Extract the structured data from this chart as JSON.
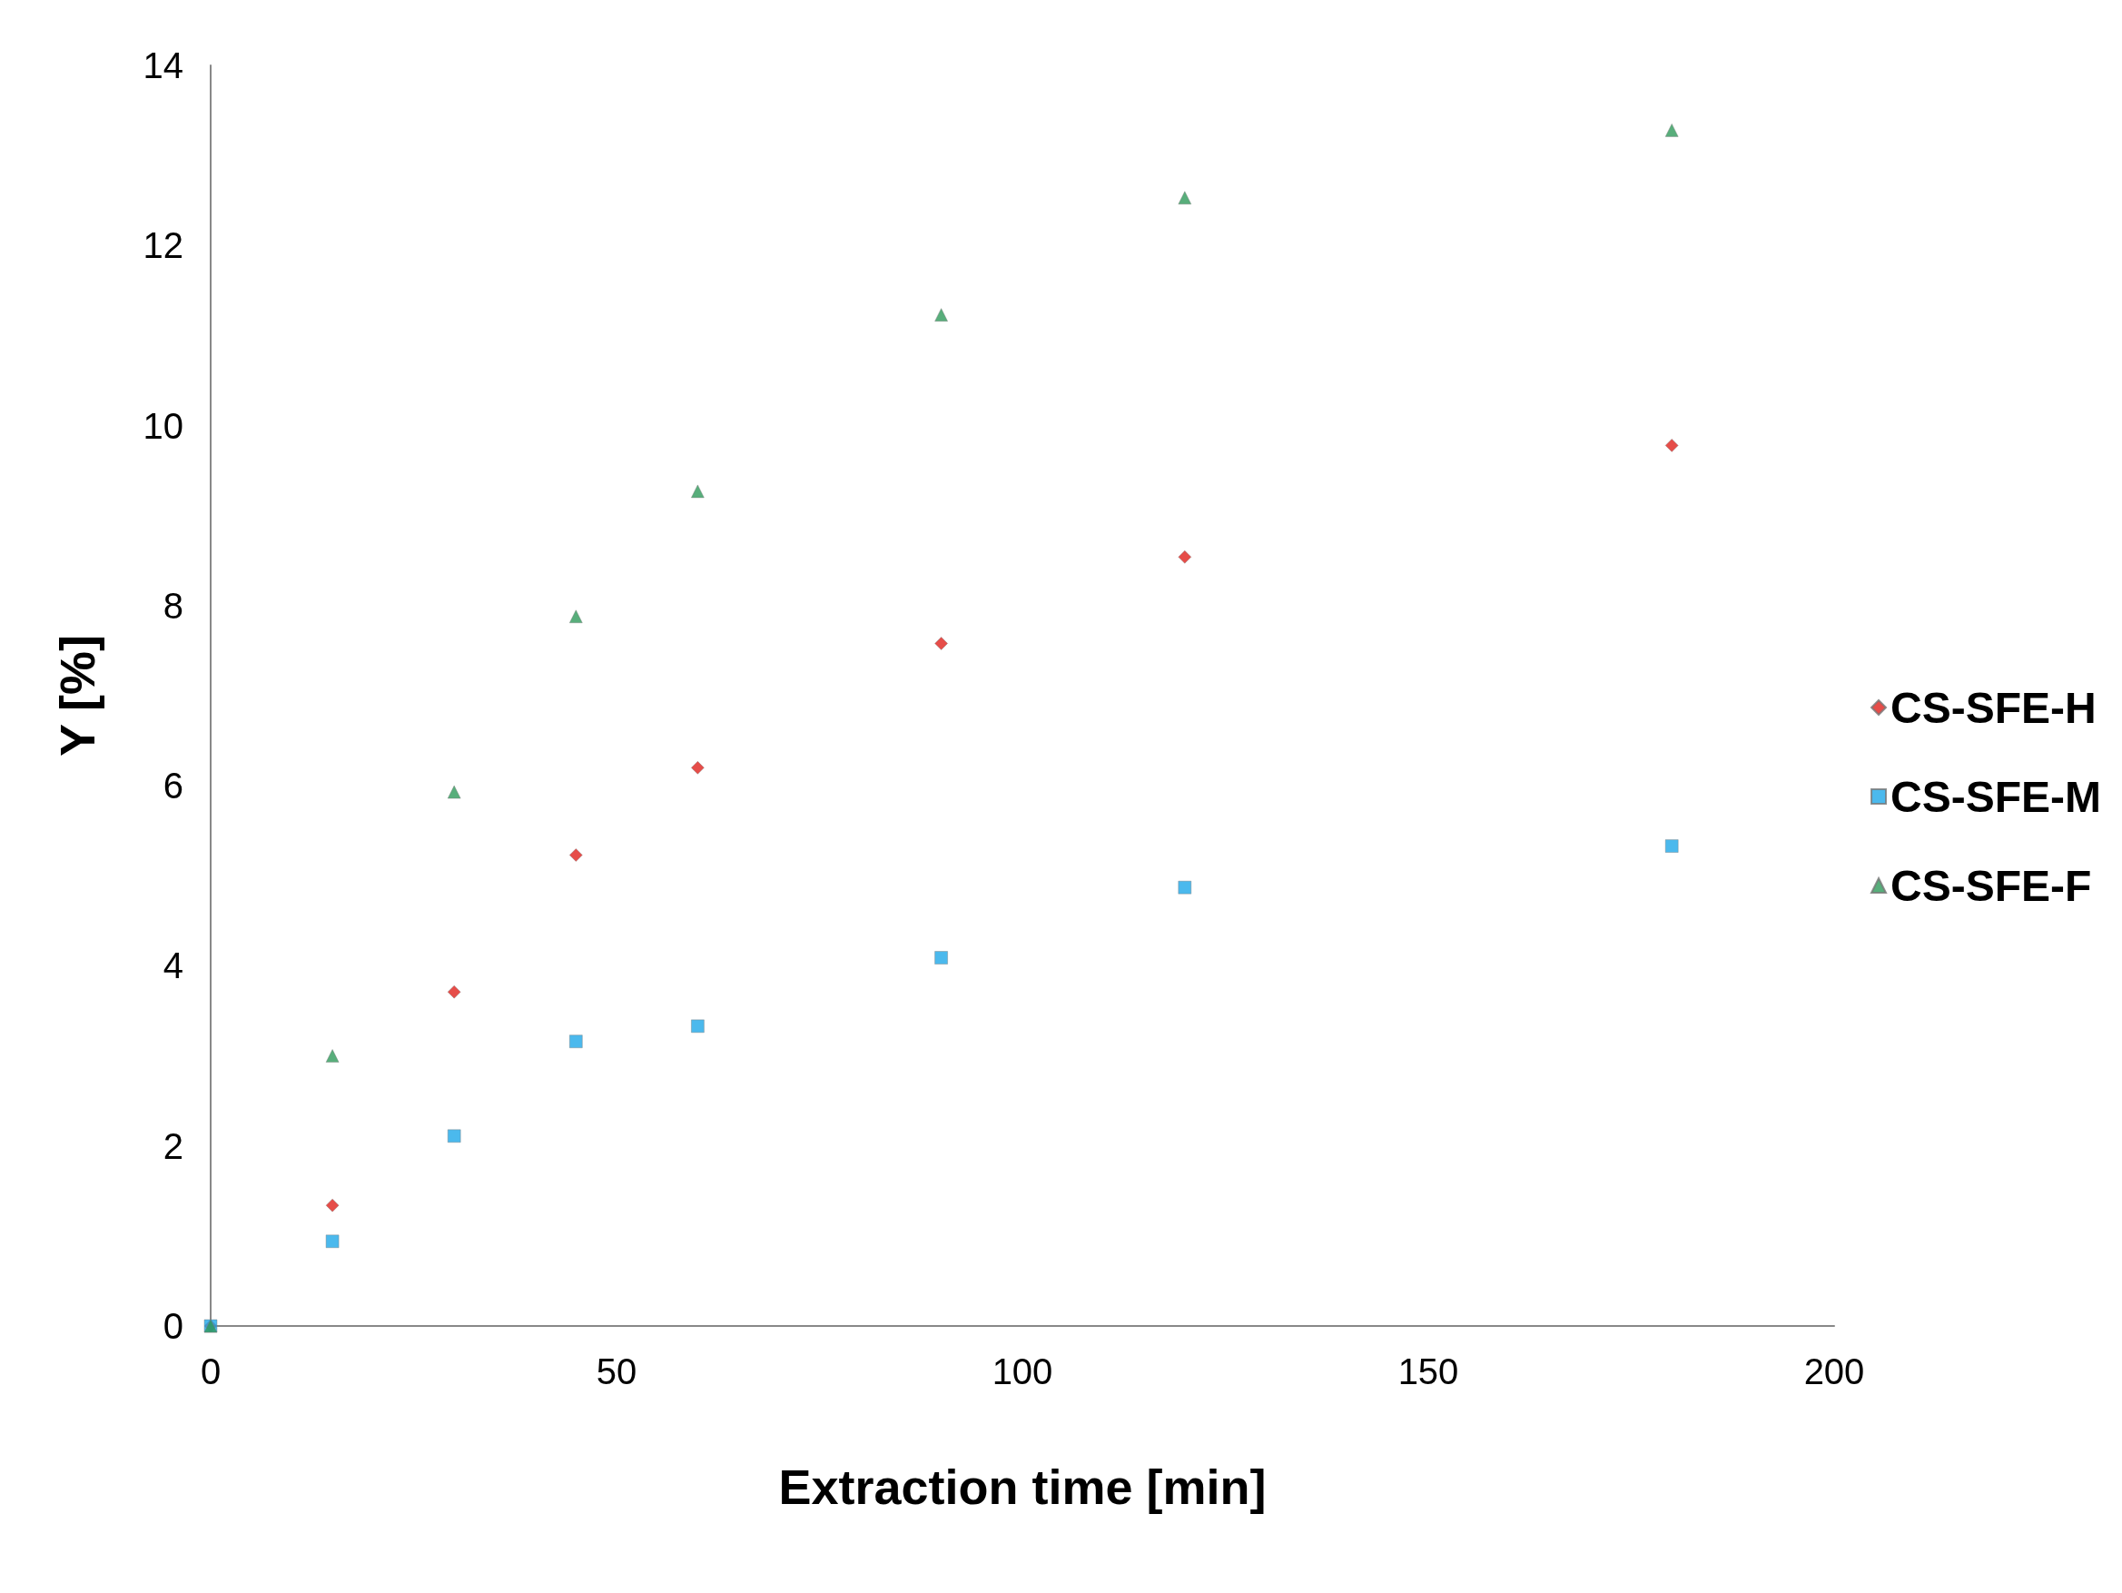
{
  "chart_data": {
    "type": "scatter",
    "xlabel": "Extraction time [min]",
    "ylabel": "Y [%]",
    "x": [
      0,
      15,
      30,
      45,
      60,
      90,
      120,
      180
    ],
    "xlim": [
      0,
      200
    ],
    "xticks": [
      0,
      50,
      100,
      150,
      200
    ],
    "ylim": [
      0,
      14
    ],
    "yticks": [
      0,
      2,
      4,
      6,
      8,
      10,
      12,
      14
    ],
    "grid": false,
    "legend": "right",
    "series": [
      {
        "name": "CS-SFE-H",
        "color": "#e0201c",
        "marker": "diamond",
        "values": [
          0,
          1.34,
          3.71,
          5.23,
          6.2,
          7.58,
          8.54,
          9.78
        ]
      },
      {
        "name": "CS-SFE-M",
        "color": "#1ea8e8",
        "marker": "square",
        "values": [
          0,
          0.94,
          2.11,
          3.16,
          3.33,
          4.09,
          4.87,
          5.33
        ]
      },
      {
        "name": "CS-SFE-F",
        "color": "#2e9a5a",
        "marker": "triangle",
        "values": [
          0,
          3.0,
          5.93,
          7.88,
          9.27,
          11.23,
          12.53,
          13.28
        ]
      }
    ]
  }
}
